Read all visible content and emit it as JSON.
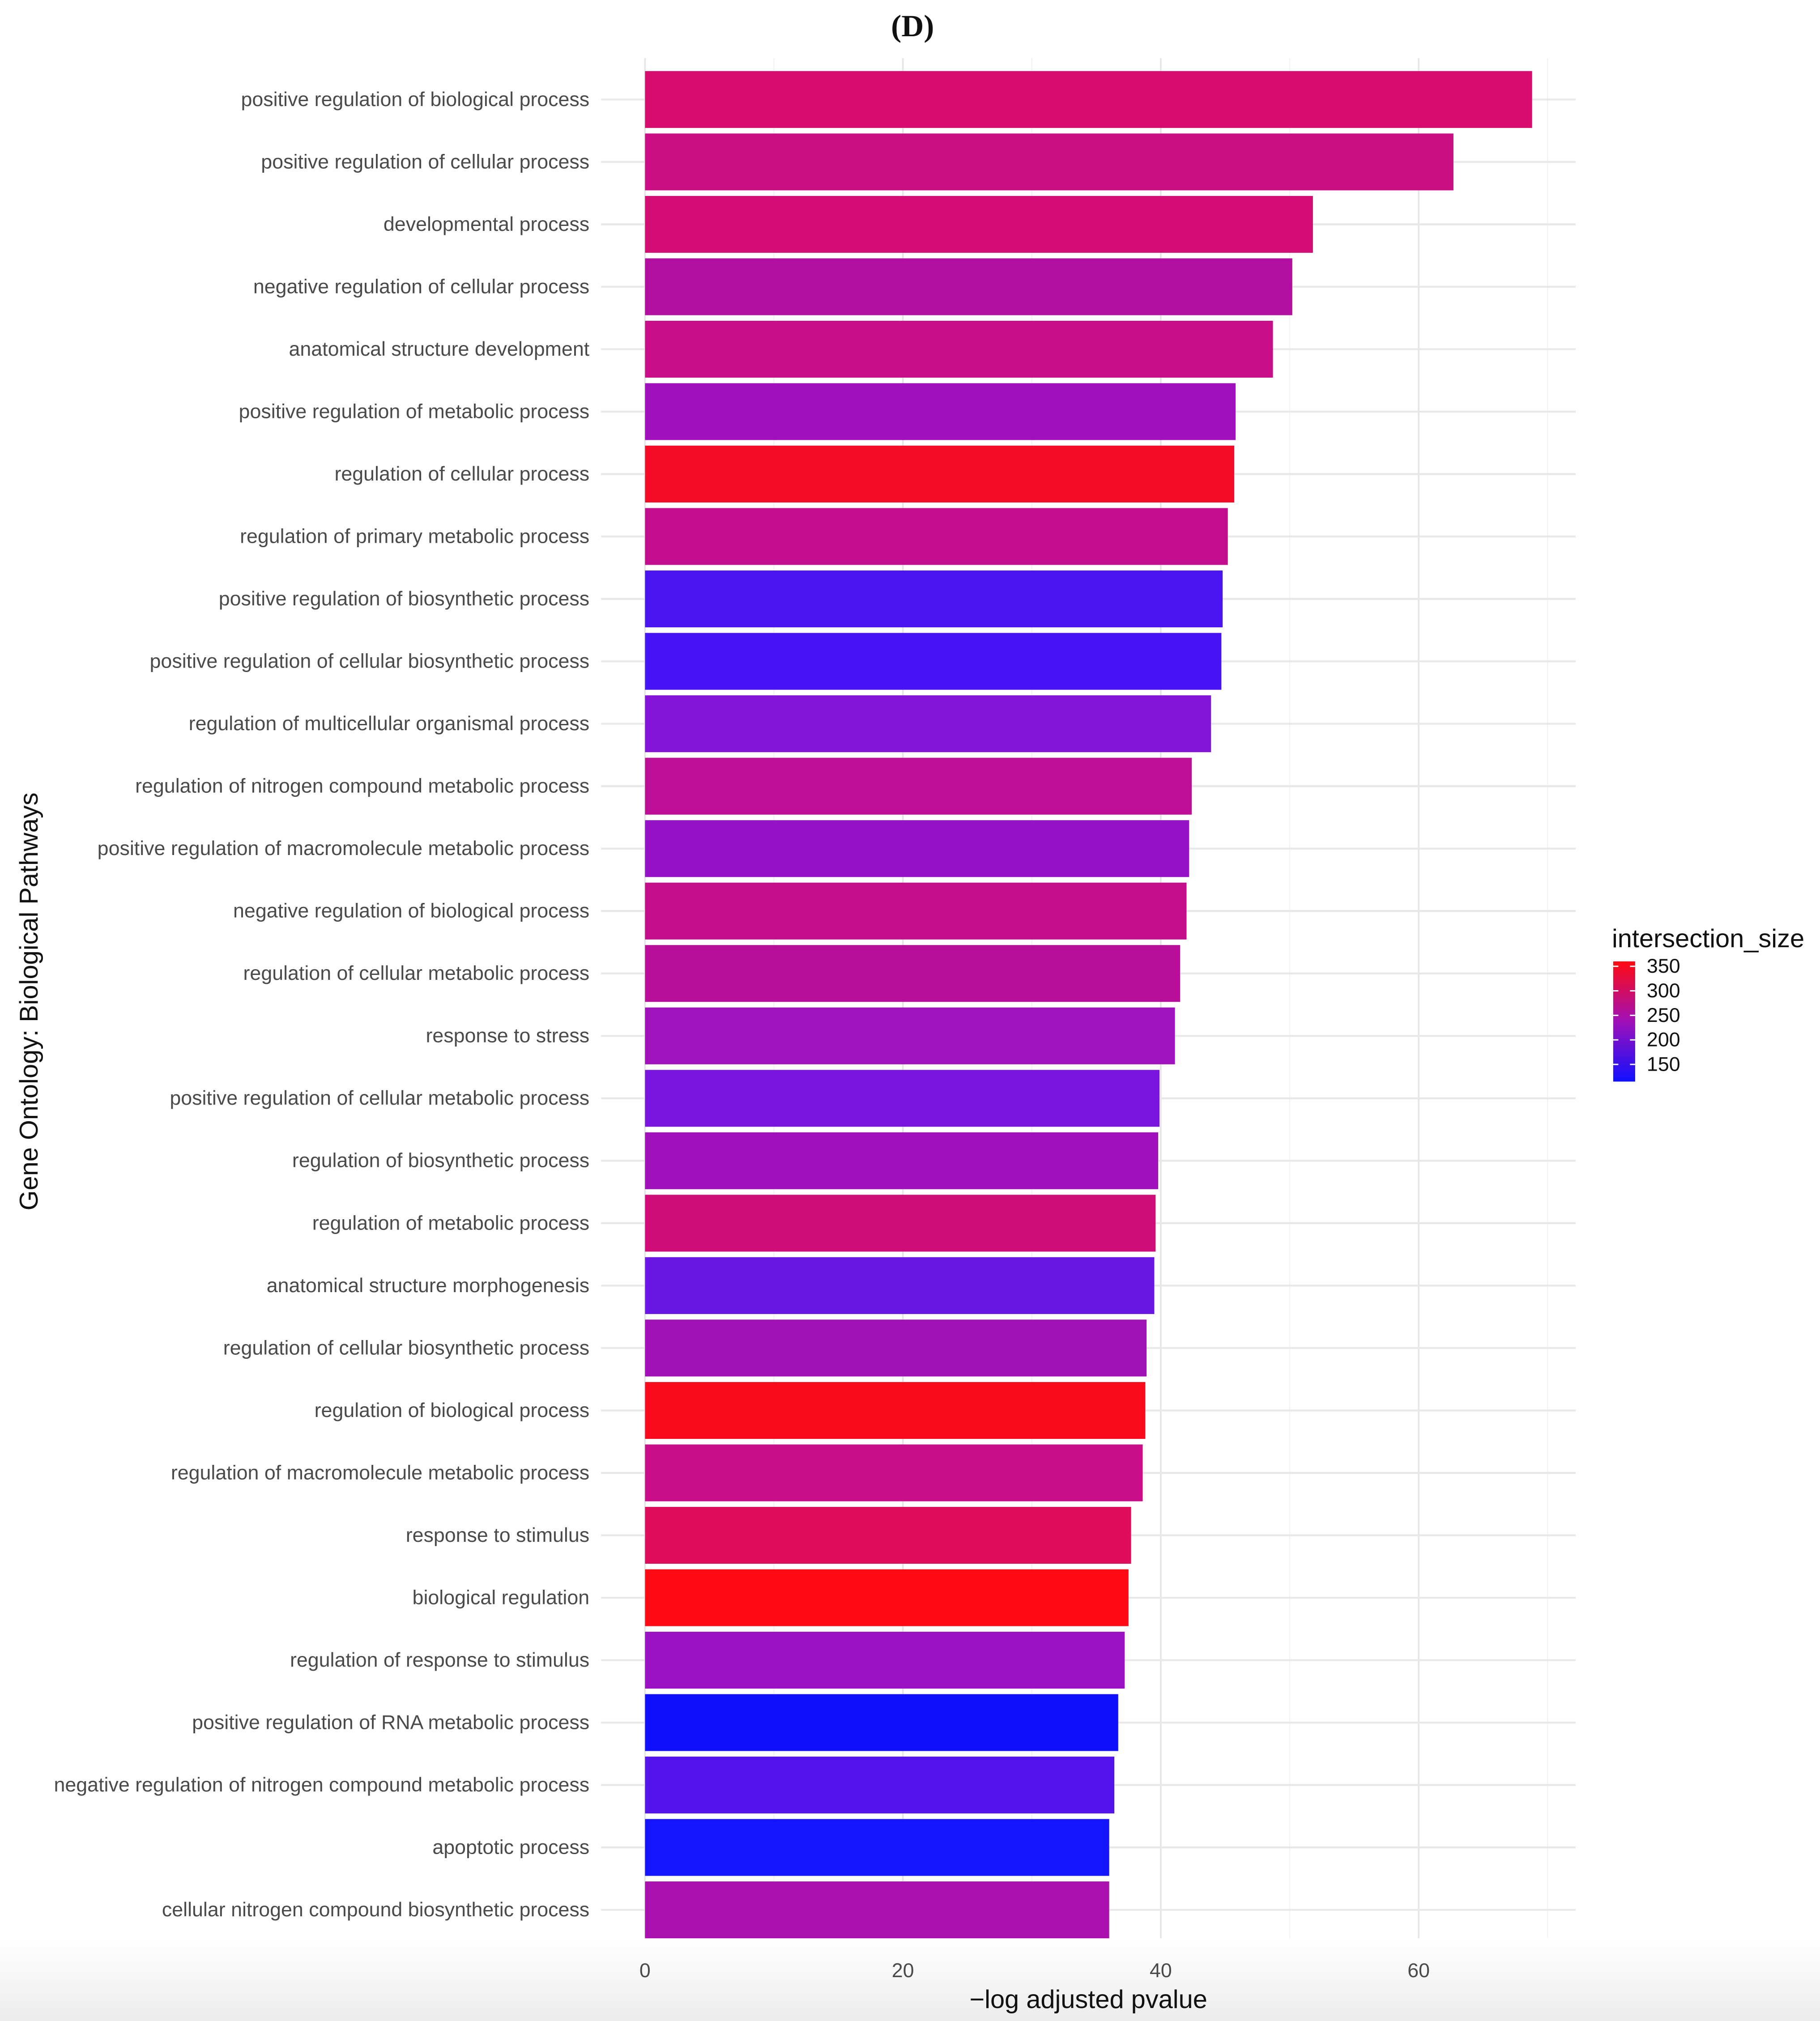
{
  "chart_data": {
    "type": "bar",
    "orientation": "horizontal",
    "title": "(D)",
    "xlabel": "−log adjusted pvalue",
    "ylabel": "Gene Ontology: Biological Pathways",
    "xlim": [
      0,
      72
    ],
    "xticks": [
      0,
      20,
      40,
      60
    ],
    "grid": true,
    "legend": {
      "title": "intersection_size",
      "ticks": [
        350,
        300,
        250,
        200,
        150
      ],
      "range": [
        115,
        360
      ],
      "low_color": "#1010ff",
      "high_color": "#ff0a10",
      "placement": "right"
    },
    "categories": [
      "positive regulation of biological process",
      "positive regulation of cellular process",
      "developmental process",
      "negative regulation of cellular process",
      "anatomical structure development",
      "positive regulation of metabolic process",
      "regulation of cellular process",
      "regulation of primary metabolic process",
      "positive regulation of biosynthetic process",
      "positive regulation of cellular biosynthetic process",
      "regulation of multicellular organismal process",
      "regulation of nitrogen compound metabolic process",
      "positive regulation of macromolecule metabolic process",
      "negative regulation of biological process",
      "regulation of cellular metabolic process",
      "response to stress",
      "positive regulation of cellular metabolic process",
      "regulation of biosynthetic process",
      "regulation of metabolic process",
      "anatomical structure morphogenesis",
      "regulation of cellular biosynthetic process",
      "regulation of biological process",
      "regulation of macromolecule metabolic process",
      "response to stimulus",
      "biological regulation",
      "regulation of response to stimulus",
      "positive regulation of RNA metabolic process",
      "negative regulation of nitrogen compound metabolic process",
      "apoptotic process",
      "cellular nitrogen compound biosynthetic process"
    ],
    "values": [
      68.8,
      62.7,
      51.8,
      50.2,
      48.7,
      45.8,
      45.7,
      45.2,
      44.8,
      44.7,
      43.9,
      42.4,
      42.2,
      42.0,
      41.5,
      41.1,
      39.9,
      39.8,
      39.6,
      39.5,
      38.9,
      38.8,
      38.6,
      37.7,
      37.5,
      37.2,
      36.7,
      36.4,
      36.0,
      36.0
    ],
    "intersection_size": [
      300,
      280,
      295,
      240,
      275,
      210,
      350,
      265,
      140,
      135,
      185,
      255,
      200,
      270,
      250,
      215,
      175,
      210,
      290,
      165,
      215,
      355,
      275,
      315,
      360,
      205,
      115,
      150,
      118,
      225
    ],
    "colors": [
      "#d60c6e",
      "#cc0e84",
      "#d40d74",
      "#b20ea0",
      "#c80e88",
      "#a011bd",
      "#f50c26",
      "#c20e8e",
      "#4a14f0",
      "#4513f5",
      "#8414d8",
      "#bc0e96",
      "#9512c8",
      "#c40e8c",
      "#b80e9a",
      "#a012bc",
      "#7a15e0",
      "#a011bc",
      "#d00c78",
      "#6a16e4",
      "#a211b8",
      "#fa0a1c",
      "#c80e88",
      "#e00c5c",
      "#fe0a14",
      "#9a12c4",
      "#1010fe",
      "#5614ec",
      "#1414fe",
      "#aa10ae"
    ]
  }
}
